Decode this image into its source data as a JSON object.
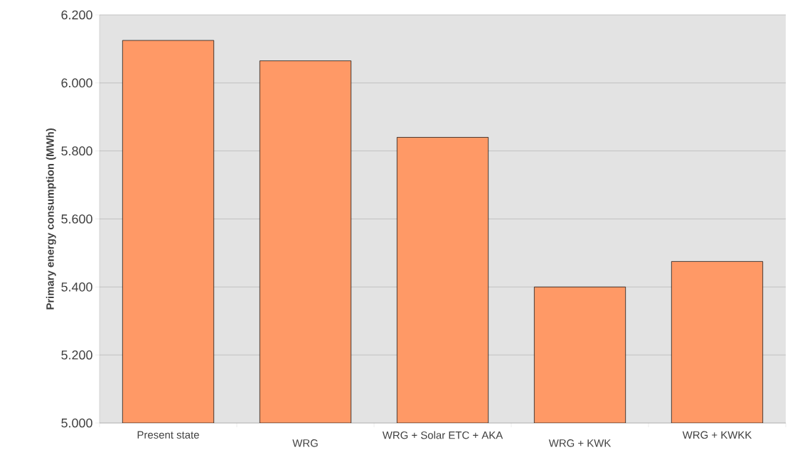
{
  "chart_data": {
    "type": "bar",
    "ylabel": "Primary energy consumption (MWh)",
    "categories": [
      "Present state",
      "WRG",
      "WRG + Solar ETC + AKA",
      "WRG + KWK",
      "WRG + KWKK"
    ],
    "values": [
      6125,
      6065,
      5840,
      5400,
      5475
    ],
    "color": "#ff9966",
    "ylim": [
      5000,
      6200
    ],
    "yticks": [
      {
        "value": 5000,
        "label": "5.000"
      },
      {
        "value": 5200,
        "label": "5.200"
      },
      {
        "value": 5400,
        "label": "5.400"
      },
      {
        "value": 5600,
        "label": "5.600"
      },
      {
        "value": 5800,
        "label": "5.800"
      },
      {
        "value": 6000,
        "label": "6.000"
      },
      {
        "value": 6200,
        "label": "6.200"
      }
    ],
    "grid": "y"
  }
}
